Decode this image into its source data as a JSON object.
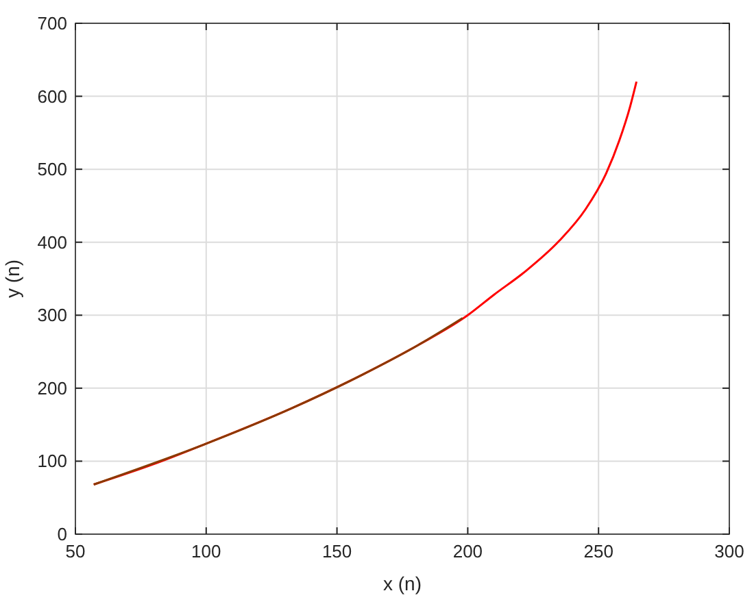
{
  "chart_data": {
    "type": "line",
    "xlabel": "x (n)",
    "ylabel": "y (n)",
    "xlim": [
      50,
      300
    ],
    "xticks": [
      50,
      100,
      150,
      200,
      250,
      300
    ],
    "ylim": [
      0,
      700
    ],
    "yticks": [
      0,
      100,
      200,
      300,
      400,
      500,
      600,
      700
    ],
    "grid": true,
    "marker": "none",
    "line_style": "solid",
    "series": [
      {
        "color": "#ff0000",
        "x": [
          57,
          80,
          100,
          133,
          160,
          181,
          200,
          210,
          222,
          235,
          245,
          253,
          258,
          262,
          264.5
        ],
        "values": [
          68,
          96,
          124,
          173,
          219,
          259,
          300,
          328,
          360,
          402,
          445,
          495,
          540,
          585,
          620
        ]
      },
      {
        "color": "#8b3a00",
        "x": [
          57,
          100,
          133,
          160,
          181,
          198
        ],
        "values": [
          68,
          124,
          173,
          219,
          259,
          296
        ]
      }
    ]
  }
}
